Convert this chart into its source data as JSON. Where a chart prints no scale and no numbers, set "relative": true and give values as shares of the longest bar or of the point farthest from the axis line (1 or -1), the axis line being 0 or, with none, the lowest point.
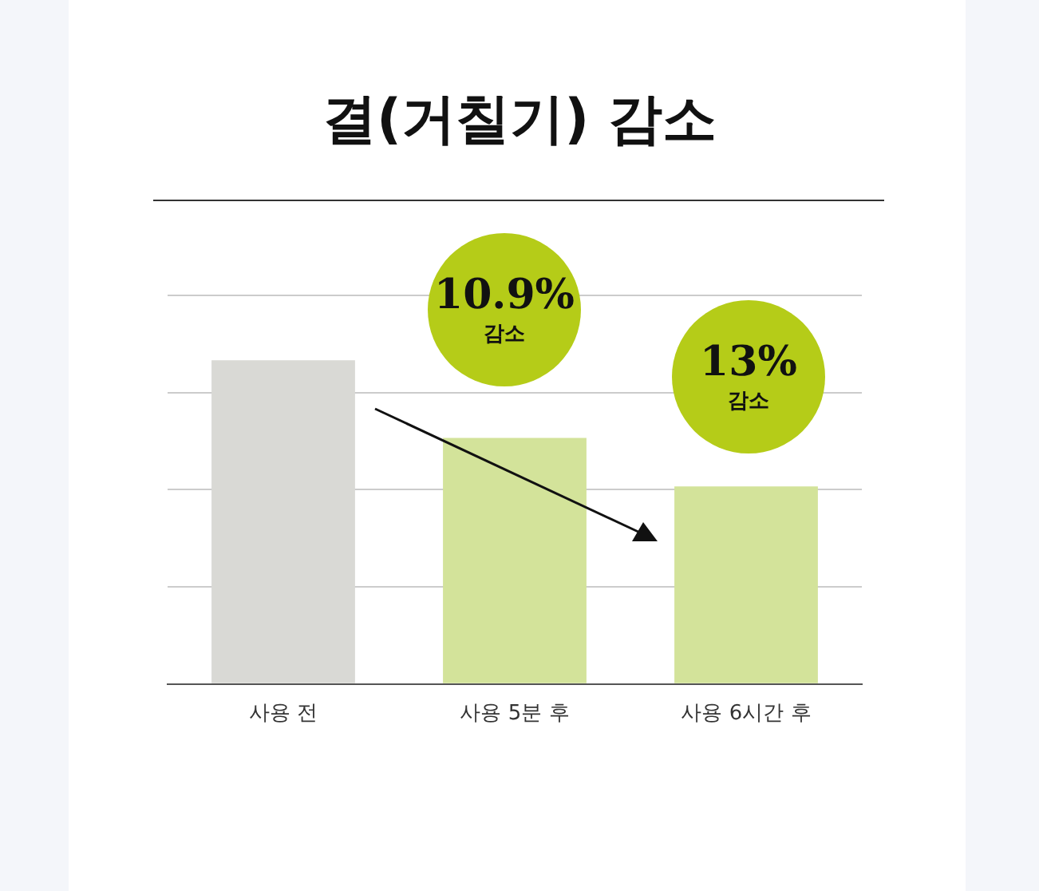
{
  "chart_data": {
    "type": "bar",
    "title": "결(거칠기) 감소",
    "categories": [
      "사용 전",
      "사용 5분 후",
      "사용 6시간 후"
    ],
    "values": [
      1,
      0.76,
      0.61
    ],
    "colors": [
      "#d9d9d5",
      "#d3e39a",
      "#d3e39a"
    ],
    "relative": true,
    "grid": "y",
    "legend": false,
    "annotations": [
      "10.9%\n감소",
      "13%\n감소"
    ]
  }
}
